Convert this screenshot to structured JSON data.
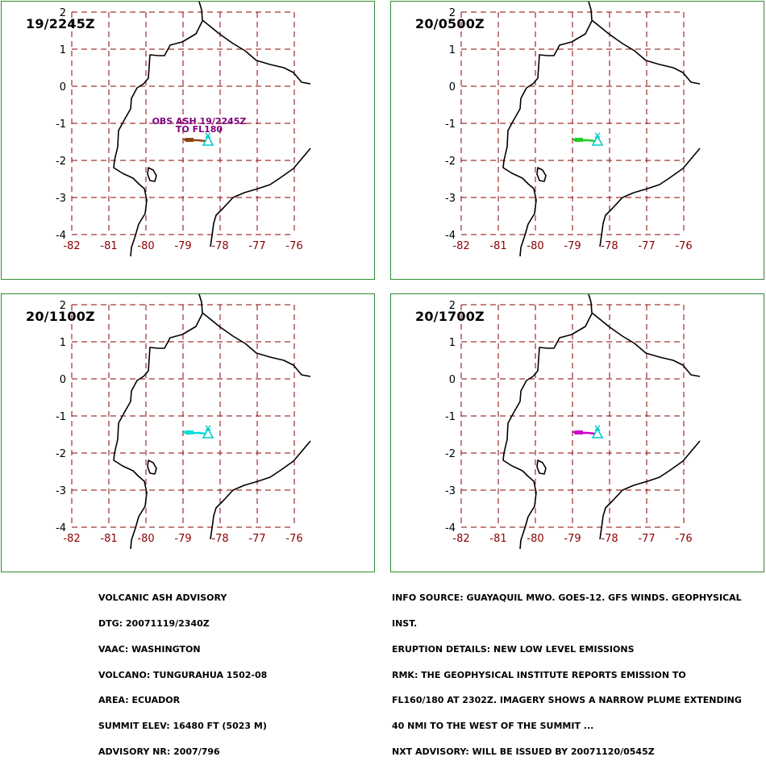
{
  "panels": [
    {
      "id": "p1",
      "time_label": "19/2245Z",
      "plume_color": "#8b4513",
      "obs_label": [
        "OBS ASH 19/2245Z",
        "TO FL180"
      ],
      "obs_color": "#800080"
    },
    {
      "id": "p2",
      "time_label": "20/0500Z",
      "plume_color": "#22cc22",
      "obs_label": [],
      "obs_color": "#800080"
    },
    {
      "id": "p3",
      "time_label": "20/1100Z",
      "plume_color": "#00dddd",
      "obs_label": [],
      "obs_color": "#800080"
    },
    {
      "id": "p4",
      "time_label": "20/1700Z",
      "plume_color": "#cc00cc",
      "obs_label": [],
      "obs_color": "#800080"
    }
  ],
  "map": {
    "lon_ticks": [
      "-82",
      "-81",
      "-80",
      "-79",
      "-78",
      "-77",
      "-76"
    ],
    "lat_ticks": [
      "2",
      "1",
      "0",
      "-1",
      "-2",
      "-3",
      "-4"
    ],
    "grid_color": "#8b0000",
    "tick_label_color": "#8b0000",
    "volcano_marker_color": "#00cccc",
    "volcano_marker_glyph": "triangle-icon"
  },
  "advisory_left": [
    "VOLCANIC ASH ADVISORY",
    "DTG: 20071119/2340Z",
    "VAAC: WASHINGTON",
    "VOLCANO: TUNGURAHUA 1502-08",
    "AREA: ECUADOR",
    "SUMMIT ELEV: 16480 FT (5023 M)",
    "ADVISORY NR: 2007/796"
  ],
  "advisory_right": [
    "INFO SOURCE: GUAYAQUIL MWO. GOES-12. GFS WINDS. GEOPHYSICAL",
    "INST.",
    "ERUPTION DETAILS: NEW LOW LEVEL EMISSIONS",
    "RMK: THE GEOPHYSICAL INSTITUTE REPORTS EMISSION TO",
    "FL160/180 AT 2302Z. IMAGERY SHOWS A NARROW PLUME EXTENDING",
    "40 NMI TO THE WEST OF THE SUMMIT ...",
    "NXT ADVISORY: WILL BE ISSUED BY 20071120/0545Z"
  ]
}
